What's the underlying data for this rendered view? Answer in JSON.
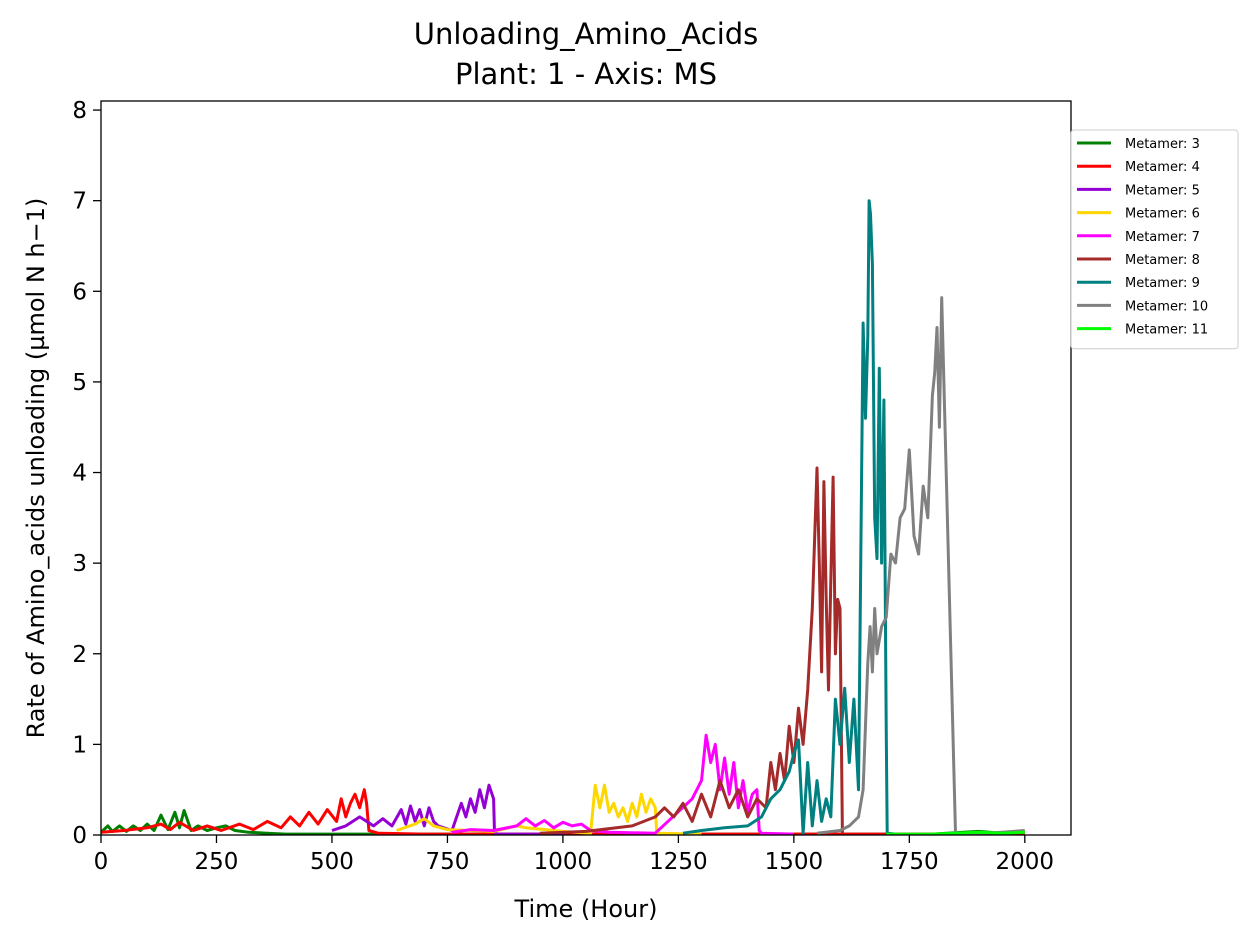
{
  "chart_data": {
    "type": "line",
    "title": "Unloading_Amino_Acids",
    "subtitle": "Plant: 1 - Axis: MS",
    "xlabel": "Time (Hour)",
    "ylabel": "Rate of Amino_acids unloading (µmol N h−1)",
    "xlim": [
      0,
      2100
    ],
    "ylim": [
      0,
      8.1
    ],
    "xticks": [
      0,
      250,
      500,
      750,
      1000,
      1250,
      1500,
      1750,
      2000
    ],
    "yticks": [
      0,
      1,
      2,
      3,
      4,
      5,
      6,
      7,
      8
    ],
    "grid": false,
    "legend_position": "outside-top-right",
    "series": [
      {
        "name": "Metamer: 3",
        "color": "#008000",
        "x": [
          0,
          15,
          25,
          40,
          55,
          70,
          85,
          100,
          115,
          130,
          145,
          160,
          170,
          180,
          195,
          210,
          230,
          250,
          270,
          290,
          320,
          360,
          400,
          500,
          600,
          700,
          800,
          1000,
          1200,
          1500,
          1800,
          1900,
          1950,
          2000
        ],
        "y": [
          0.03,
          0.1,
          0.04,
          0.1,
          0.04,
          0.1,
          0.05,
          0.12,
          0.05,
          0.22,
          0.06,
          0.25,
          0.08,
          0.27,
          0.05,
          0.1,
          0.05,
          0.08,
          0.1,
          0.05,
          0.03,
          0.02,
          0.01,
          0.01,
          0.01,
          0.01,
          0.01,
          0.01,
          0.01,
          0.01,
          0.01,
          0.04,
          0.02,
          0.03
        ]
      },
      {
        "name": "Metamer: 4",
        "color": "#ff0000",
        "x": [
          0,
          50,
          100,
          130,
          150,
          170,
          200,
          230,
          260,
          300,
          330,
          360,
          390,
          410,
          430,
          450,
          470,
          490,
          510,
          520,
          530,
          540,
          550,
          560,
          570,
          575,
          580,
          600,
          700,
          800,
          1000,
          1200,
          1500,
          1800,
          2000
        ],
        "y": [
          0.03,
          0.05,
          0.08,
          0.12,
          0.06,
          0.14,
          0.05,
          0.1,
          0.05,
          0.12,
          0.06,
          0.15,
          0.08,
          0.2,
          0.1,
          0.25,
          0.12,
          0.28,
          0.15,
          0.4,
          0.2,
          0.35,
          0.45,
          0.3,
          0.5,
          0.35,
          0.05,
          0.02,
          0.01,
          0.01,
          0.01,
          0.01,
          0.01,
          0.01,
          0.01
        ]
      },
      {
        "name": "Metamer: 5",
        "color": "#9400d3",
        "x": [
          500,
          530,
          560,
          590,
          610,
          630,
          650,
          660,
          670,
          680,
          690,
          700,
          710,
          720,
          730,
          760,
          780,
          790,
          800,
          810,
          820,
          830,
          840,
          850,
          852,
          860,
          900,
          1000
        ],
        "y": [
          0.05,
          0.1,
          0.2,
          0.1,
          0.18,
          0.1,
          0.28,
          0.12,
          0.32,
          0.15,
          0.28,
          0.1,
          0.3,
          0.15,
          0.1,
          0.05,
          0.35,
          0.2,
          0.4,
          0.25,
          0.5,
          0.3,
          0.55,
          0.4,
          0.02,
          0.01,
          0.01,
          0.01
        ]
      },
      {
        "name": "Metamer: 6",
        "color": "#ffd700",
        "x": [
          640,
          680,
          700,
          720,
          750,
          800,
          850,
          900,
          920,
          1000,
          1060,
          1070,
          1080,
          1090,
          1100,
          1110,
          1120,
          1130,
          1140,
          1150,
          1160,
          1170,
          1180,
          1190,
          1200,
          1203,
          1300
        ],
        "y": [
          0.05,
          0.12,
          0.18,
          0.1,
          0.06,
          0.05,
          0.04,
          0.1,
          0.08,
          0.04,
          0.02,
          0.55,
          0.3,
          0.55,
          0.25,
          0.35,
          0.2,
          0.3,
          0.15,
          0.35,
          0.2,
          0.45,
          0.25,
          0.4,
          0.3,
          0.02,
          0.01
        ]
      },
      {
        "name": "Metamer: 7",
        "color": "#ff00ff",
        "x": [
          760,
          800,
          850,
          900,
          920,
          940,
          960,
          980,
          1000,
          1020,
          1040,
          1060,
          1100,
          1200,
          1280,
          1300,
          1310,
          1320,
          1330,
          1340,
          1350,
          1360,
          1370,
          1380,
          1390,
          1400,
          1410,
          1420,
          1425,
          1430,
          1500
        ],
        "y": [
          0.03,
          0.06,
          0.05,
          0.1,
          0.18,
          0.1,
          0.16,
          0.08,
          0.14,
          0.1,
          0.12,
          0.05,
          0.03,
          0.02,
          0.4,
          0.6,
          1.1,
          0.8,
          1.0,
          0.5,
          0.85,
          0.45,
          0.8,
          0.3,
          0.6,
          0.25,
          0.45,
          0.5,
          0.05,
          0.02,
          0.01
        ]
      },
      {
        "name": "Metamer: 8",
        "color": "#a52a2a",
        "x": [
          950,
          1050,
          1150,
          1200,
          1220,
          1240,
          1260,
          1280,
          1300,
          1320,
          1340,
          1360,
          1380,
          1400,
          1420,
          1440,
          1450,
          1460,
          1470,
          1480,
          1490,
          1500,
          1510,
          1520,
          1530,
          1540,
          1550,
          1555,
          1560,
          1565,
          1570,
          1575,
          1580,
          1585,
          1590,
          1595,
          1600,
          1605
        ],
        "y": [
          0.02,
          0.04,
          0.1,
          0.2,
          0.3,
          0.2,
          0.35,
          0.15,
          0.45,
          0.2,
          0.6,
          0.3,
          0.5,
          0.2,
          0.4,
          0.3,
          0.8,
          0.5,
          0.9,
          0.6,
          1.2,
          0.8,
          1.4,
          1.0,
          1.6,
          2.5,
          4.05,
          3.0,
          1.8,
          3.9,
          2.6,
          1.6,
          2.8,
          3.95,
          2.0,
          2.6,
          2.5,
          0.02
        ]
      },
      {
        "name": "Metamer: 9",
        "color": "#008080",
        "x": [
          1260,
          1300,
          1350,
          1400,
          1430,
          1450,
          1470,
          1490,
          1500,
          1510,
          1520,
          1530,
          1540,
          1550,
          1560,
          1570,
          1580,
          1590,
          1600,
          1610,
          1620,
          1630,
          1640,
          1650,
          1655,
          1660,
          1663,
          1666,
          1670,
          1675,
          1680,
          1685,
          1690,
          1695,
          1700,
          1702,
          1720
        ],
        "y": [
          0.02,
          0.05,
          0.08,
          0.1,
          0.2,
          0.4,
          0.5,
          0.7,
          0.9,
          1.05,
          0.02,
          0.8,
          0.1,
          0.6,
          0.15,
          0.4,
          0.2,
          1.5,
          1.0,
          1.62,
          0.8,
          1.5,
          0.5,
          5.65,
          4.6,
          5.5,
          7.0,
          6.85,
          6.3,
          3.5,
          3.05,
          5.15,
          3.0,
          4.8,
          1.2,
          0.02,
          0.01
        ]
      },
      {
        "name": "Metamer: 10",
        "color": "#808080",
        "x": [
          1550,
          1600,
          1620,
          1640,
          1650,
          1660,
          1665,
          1670,
          1675,
          1680,
          1690,
          1700,
          1710,
          1720,
          1730,
          1740,
          1750,
          1760,
          1770,
          1780,
          1790,
          1800,
          1805,
          1810,
          1815,
          1820,
          1850,
          1900,
          1950,
          2000
        ],
        "y": [
          0.02,
          0.05,
          0.1,
          0.2,
          0.5,
          1.9,
          2.3,
          1.8,
          2.5,
          2.0,
          2.3,
          2.4,
          3.1,
          3.0,
          3.5,
          3.6,
          4.25,
          3.3,
          3.1,
          3.85,
          3.5,
          4.85,
          5.1,
          5.6,
          4.5,
          5.93,
          0.02,
          0.02,
          0.03,
          0.05
        ]
      },
      {
        "name": "Metamer: 11",
        "color": "#00ff00",
        "x": [
          1700,
          1800,
          1850,
          1900,
          1950,
          2000
        ],
        "y": [
          0.01,
          0.01,
          0.02,
          0.03,
          0.02,
          0.03
        ]
      }
    ]
  }
}
